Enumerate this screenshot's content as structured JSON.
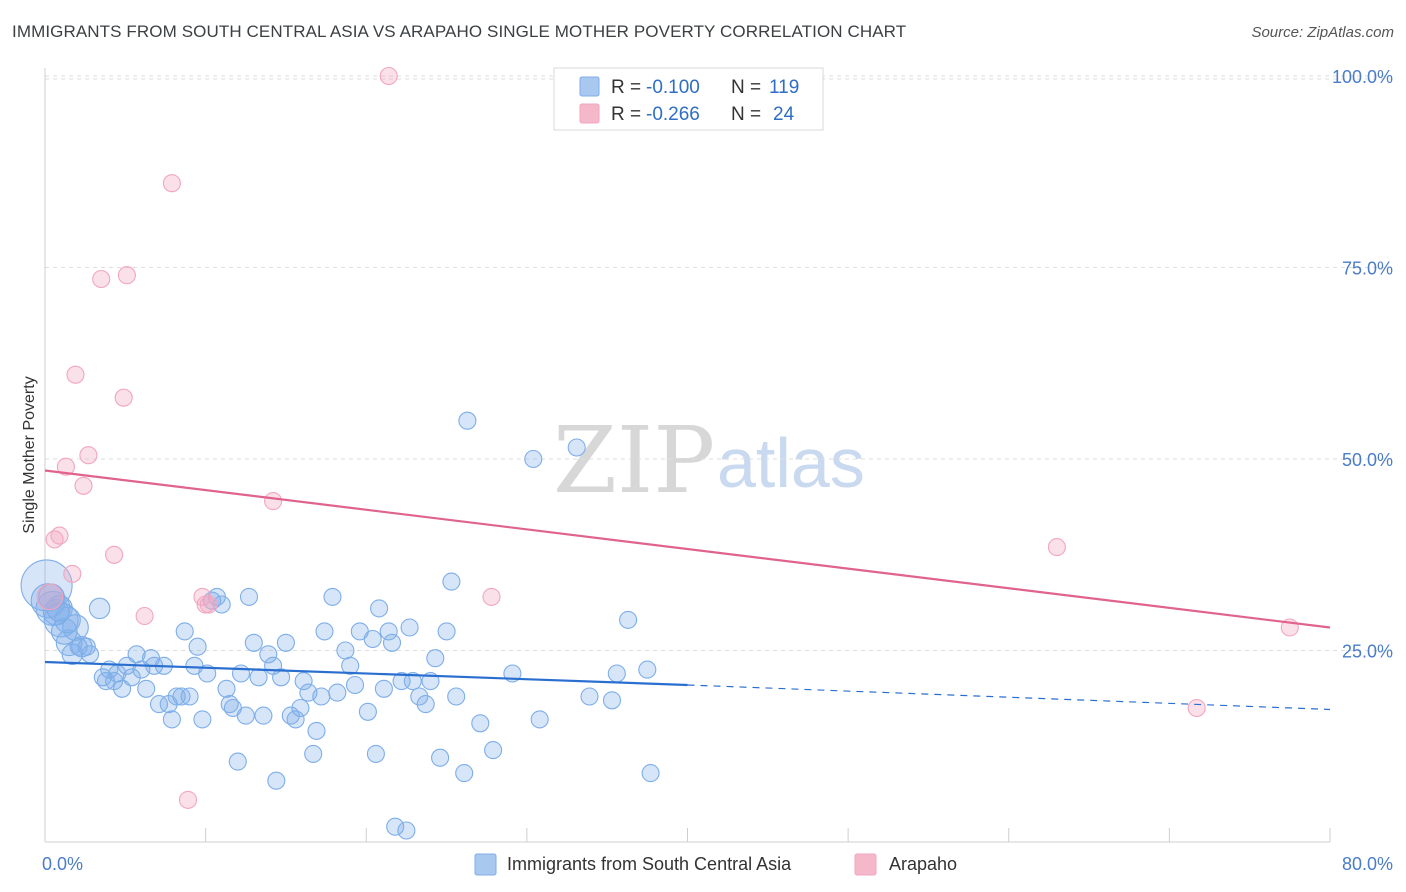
{
  "title": "IMMIGRANTS FROM SOUTH CENTRAL ASIA VS ARAPAHO SINGLE MOTHER POVERTY CORRELATION CHART",
  "source": "Source: ZipAtlas.com",
  "watermark": {
    "zip": "ZIP",
    "atlas": "atlas"
  },
  "legend": {
    "rows": [
      {
        "r_label": "R =",
        "r_value": "-0.100",
        "n_label": "N =",
        "n_value": "119",
        "color": "#a9c8f0"
      },
      {
        "r_label": "R =",
        "r_value": "-0.266",
        "n_label": "N =",
        "n_value": "24",
        "color": "#f5b8cb"
      }
    ]
  },
  "chart_data": {
    "type": "scatter",
    "title": "IMMIGRANTS FROM SOUTH CENTRAL ASIA VS ARAPAHO SINGLE MOTHER POVERTY CORRELATION CHART",
    "xlabel": "",
    "ylabel": "Single Mother Poverty",
    "xlim": [
      0,
      80
    ],
    "ylim": [
      0,
      102
    ],
    "x_tick_labels": [
      "0.0%",
      "80.0%"
    ],
    "y_ticks": [
      25,
      50,
      75,
      100
    ],
    "y_tick_labels": [
      "25.0%",
      "50.0%",
      "75.0%",
      "100.0%"
    ],
    "grid": true,
    "series": [
      {
        "name": "Immigrants from South Central Asia",
        "color": "#7eaee8",
        "line_color": "#2a6fd0",
        "trend": {
          "x0": 0,
          "y0": 23.5,
          "x1": 40,
          "y1": 20.5,
          "dashed_to_x": 80,
          "dashed_to_y": 17.3
        },
        "points": [
          [
            0.1,
            33.5,
            3
          ],
          [
            0.2,
            31.5,
            2
          ],
          [
            0.4,
            32,
            1.5
          ],
          [
            0.5,
            30.5,
            2
          ],
          [
            0.7,
            30,
            1.5
          ],
          [
            0.9,
            30.5,
            1.5
          ],
          [
            1.0,
            29,
            2
          ],
          [
            1.2,
            27.5,
            1.5
          ],
          [
            1.4,
            29,
            1.5
          ],
          [
            1.5,
            26,
            1.5
          ],
          [
            1.7,
            24.5,
            1.2
          ],
          [
            1.9,
            28,
            1.5
          ],
          [
            2.1,
            25.5,
            1
          ],
          [
            2.3,
            25.5,
            1.2
          ],
          [
            2.6,
            25.5,
            1
          ],
          [
            2.8,
            24.5,
            1
          ],
          [
            3.4,
            30.5,
            1.2
          ],
          [
            3.6,
            21.5,
            1
          ],
          [
            3.8,
            21,
            1
          ],
          [
            4.0,
            22.5,
            1
          ],
          [
            4.3,
            21,
            1
          ],
          [
            4.5,
            22,
            1
          ],
          [
            4.8,
            20,
            1
          ],
          [
            5.1,
            23,
            1
          ],
          [
            5.4,
            21.5,
            1
          ],
          [
            5.7,
            24.5,
            1
          ],
          [
            6.0,
            22.5,
            1
          ],
          [
            6.3,
            20,
            1
          ],
          [
            6.6,
            24,
            1
          ],
          [
            6.8,
            23,
            1
          ],
          [
            7.1,
            18,
            1
          ],
          [
            7.4,
            23,
            1
          ],
          [
            7.7,
            18,
            1
          ],
          [
            7.9,
            16,
            1
          ],
          [
            8.2,
            19,
            1
          ],
          [
            8.5,
            19,
            1
          ],
          [
            8.7,
            27.5,
            1
          ],
          [
            9.0,
            19,
            1
          ],
          [
            9.3,
            23,
            1
          ],
          [
            9.5,
            25.5,
            1
          ],
          [
            9.8,
            16,
            1
          ],
          [
            10.1,
            22,
            1
          ],
          [
            10.4,
            31.5,
            1
          ],
          [
            10.7,
            32,
            1
          ],
          [
            11.0,
            31,
            1
          ],
          [
            11.3,
            20,
            1
          ],
          [
            11.5,
            18,
            1
          ],
          [
            11.7,
            17.5,
            1
          ],
          [
            12.0,
            10.5,
            1
          ],
          [
            12.2,
            22,
            1
          ],
          [
            12.5,
            16.5,
            1
          ],
          [
            12.7,
            32,
            1
          ],
          [
            13.0,
            26,
            1
          ],
          [
            13.3,
            21.5,
            1
          ],
          [
            13.6,
            16.5,
            1
          ],
          [
            13.9,
            24.5,
            1
          ],
          [
            14.2,
            23,
            1
          ],
          [
            14.4,
            8,
            1
          ],
          [
            14.7,
            21.5,
            1
          ],
          [
            15.0,
            26,
            1
          ],
          [
            15.3,
            16.5,
            1
          ],
          [
            15.6,
            16,
            1
          ],
          [
            15.9,
            17.5,
            1
          ],
          [
            16.1,
            21,
            1
          ],
          [
            16.4,
            19.5,
            1
          ],
          [
            16.7,
            11.5,
            1
          ],
          [
            16.9,
            14.5,
            1
          ],
          [
            17.2,
            19,
            1
          ],
          [
            17.4,
            27.5,
            1
          ],
          [
            17.9,
            32,
            1
          ],
          [
            18.2,
            19.5,
            1
          ],
          [
            18.7,
            25,
            1
          ],
          [
            19.0,
            23,
            1
          ],
          [
            19.3,
            20.5,
            1
          ],
          [
            19.6,
            27.5,
            1
          ],
          [
            20.1,
            17,
            1
          ],
          [
            20.4,
            26.5,
            1
          ],
          [
            20.6,
            11.5,
            1
          ],
          [
            20.8,
            30.5,
            1
          ],
          [
            21.1,
            20,
            1
          ],
          [
            21.4,
            27.5,
            1
          ],
          [
            21.6,
            26,
            1
          ],
          [
            21.8,
            2,
            1
          ],
          [
            22.2,
            21,
            1
          ],
          [
            22.5,
            1.5,
            1
          ],
          [
            22.7,
            28,
            1
          ],
          [
            22.9,
            21,
            1
          ],
          [
            23.3,
            19,
            1
          ],
          [
            23.7,
            18,
            1
          ],
          [
            24.0,
            21,
            1
          ],
          [
            24.3,
            24,
            1
          ],
          [
            24.6,
            11,
            1
          ],
          [
            25.0,
            27.5,
            1
          ],
          [
            25.3,
            34,
            1
          ],
          [
            25.6,
            19,
            1
          ],
          [
            26.1,
            9,
            1
          ],
          [
            26.3,
            55,
            1
          ],
          [
            27.1,
            15.5,
            1
          ],
          [
            27.9,
            12,
            1
          ],
          [
            29.1,
            22,
            1
          ],
          [
            30.4,
            50,
            1
          ],
          [
            30.8,
            16,
            1
          ],
          [
            33.1,
            51.5,
            1
          ],
          [
            33.9,
            19,
            1
          ],
          [
            35.3,
            18.5,
            1
          ],
          [
            35.6,
            22,
            1
          ],
          [
            36.3,
            29,
            1
          ],
          [
            37.5,
            22.5,
            1
          ],
          [
            37.7,
            9,
            1
          ]
        ]
      },
      {
        "name": "Arapaho",
        "color": "#f2a6bf",
        "line_color": "#e0628f",
        "trend": {
          "x0": 0,
          "y0": 48.5,
          "x1": 80,
          "y1": 28
        },
        "points": [
          [
            0.3,
            32,
            1.5
          ],
          [
            0.6,
            39.5,
            1
          ],
          [
            0.9,
            40,
            1
          ],
          [
            1.3,
            49,
            1
          ],
          [
            1.7,
            35,
            1
          ],
          [
            1.9,
            61,
            1
          ],
          [
            2.4,
            46.5,
            1
          ],
          [
            2.7,
            50.5,
            1
          ],
          [
            3.5,
            73.5,
            1
          ],
          [
            4.3,
            37.5,
            1
          ],
          [
            4.9,
            58,
            1
          ],
          [
            5.1,
            74,
            1
          ],
          [
            6.2,
            29.5,
            1
          ],
          [
            7.9,
            86,
            1
          ],
          [
            8.9,
            5.5,
            1
          ],
          [
            9.8,
            32,
            1
          ],
          [
            10.0,
            31,
            1
          ],
          [
            10.2,
            31,
            1
          ],
          [
            14.2,
            44.5,
            1
          ],
          [
            21.4,
            100,
            1
          ],
          [
            27.8,
            32,
            1
          ],
          [
            63.0,
            38.5,
            1
          ],
          [
            71.7,
            17.5,
            1
          ],
          [
            77.5,
            28,
            1
          ]
        ]
      }
    ]
  },
  "bottom_legend": {
    "items": [
      {
        "label": "Immigrants from South Central Asia",
        "color": "#a9c8f0"
      },
      {
        "label": "Arapaho",
        "color": "#f5b8cb"
      }
    ]
  }
}
